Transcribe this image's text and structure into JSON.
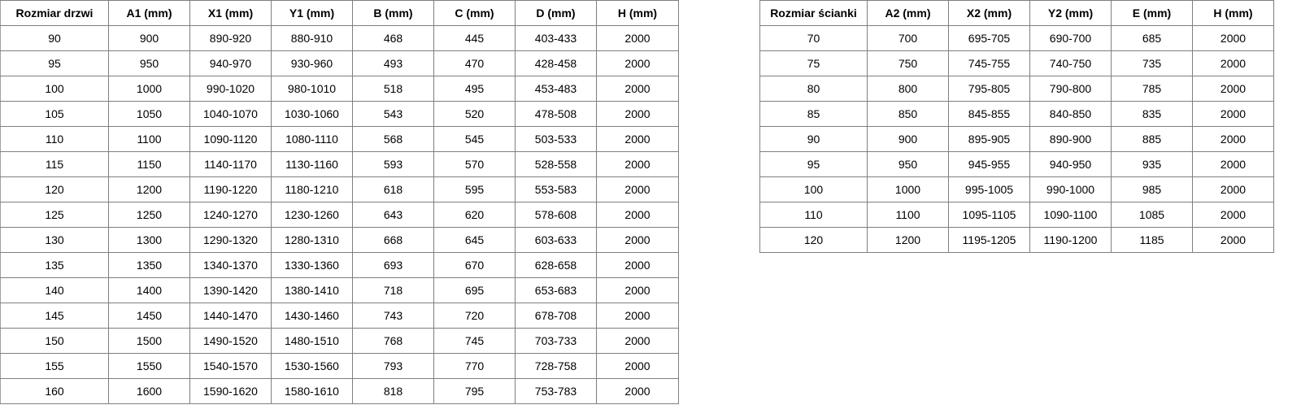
{
  "doors_table": {
    "headers": [
      "Rozmiar drzwi",
      "A1 (mm)",
      "X1 (mm)",
      "Y1 (mm)",
      "B (mm)",
      "C (mm)",
      "D (mm)",
      "H (mm)"
    ],
    "rows": [
      [
        "90",
        "900",
        "890-920",
        "880-910",
        "468",
        "445",
        "403-433",
        "2000"
      ],
      [
        "95",
        "950",
        "940-970",
        "930-960",
        "493",
        "470",
        "428-458",
        "2000"
      ],
      [
        "100",
        "1000",
        "990-1020",
        "980-1010",
        "518",
        "495",
        "453-483",
        "2000"
      ],
      [
        "105",
        "1050",
        "1040-1070",
        "1030-1060",
        "543",
        "520",
        "478-508",
        "2000"
      ],
      [
        "110",
        "1100",
        "1090-1120",
        "1080-1110",
        "568",
        "545",
        "503-533",
        "2000"
      ],
      [
        "115",
        "1150",
        "1140-1170",
        "1130-1160",
        "593",
        "570",
        "528-558",
        "2000"
      ],
      [
        "120",
        "1200",
        "1190-1220",
        "1180-1210",
        "618",
        "595",
        "553-583",
        "2000"
      ],
      [
        "125",
        "1250",
        "1240-1270",
        "1230-1260",
        "643",
        "620",
        "578-608",
        "2000"
      ],
      [
        "130",
        "1300",
        "1290-1320",
        "1280-1310",
        "668",
        "645",
        "603-633",
        "2000"
      ],
      [
        "135",
        "1350",
        "1340-1370",
        "1330-1360",
        "693",
        "670",
        "628-658",
        "2000"
      ],
      [
        "140",
        "1400",
        "1390-1420",
        "1380-1410",
        "718",
        "695",
        "653-683",
        "2000"
      ],
      [
        "145",
        "1450",
        "1440-1470",
        "1430-1460",
        "743",
        "720",
        "678-708",
        "2000"
      ],
      [
        "150",
        "1500",
        "1490-1520",
        "1480-1510",
        "768",
        "745",
        "703-733",
        "2000"
      ],
      [
        "155",
        "1550",
        "1540-1570",
        "1530-1560",
        "793",
        "770",
        "728-758",
        "2000"
      ],
      [
        "160",
        "1600",
        "1590-1620",
        "1580-1610",
        "818",
        "795",
        "753-783",
        "2000"
      ]
    ]
  },
  "wall_table": {
    "headers": [
      "Rozmiar ścianki",
      "A2 (mm)",
      "X2 (mm)",
      "Y2 (mm)",
      "E (mm)",
      "H (mm)"
    ],
    "rows": [
      [
        "70",
        "700",
        "695-705",
        "690-700",
        "685",
        "2000"
      ],
      [
        "75",
        "750",
        "745-755",
        "740-750",
        "735",
        "2000"
      ],
      [
        "80",
        "800",
        "795-805",
        "790-800",
        "785",
        "2000"
      ],
      [
        "85",
        "850",
        "845-855",
        "840-850",
        "835",
        "2000"
      ],
      [
        "90",
        "900",
        "895-905",
        "890-900",
        "885",
        "2000"
      ],
      [
        "95",
        "950",
        "945-955",
        "940-950",
        "935",
        "2000"
      ],
      [
        "100",
        "1000",
        "995-1005",
        "990-1000",
        "985",
        "2000"
      ],
      [
        "110",
        "1100",
        "1095-1105",
        "1090-1100",
        "1085",
        "2000"
      ],
      [
        "120",
        "1200",
        "1195-1205",
        "1190-1200",
        "1185",
        "2000"
      ]
    ]
  }
}
